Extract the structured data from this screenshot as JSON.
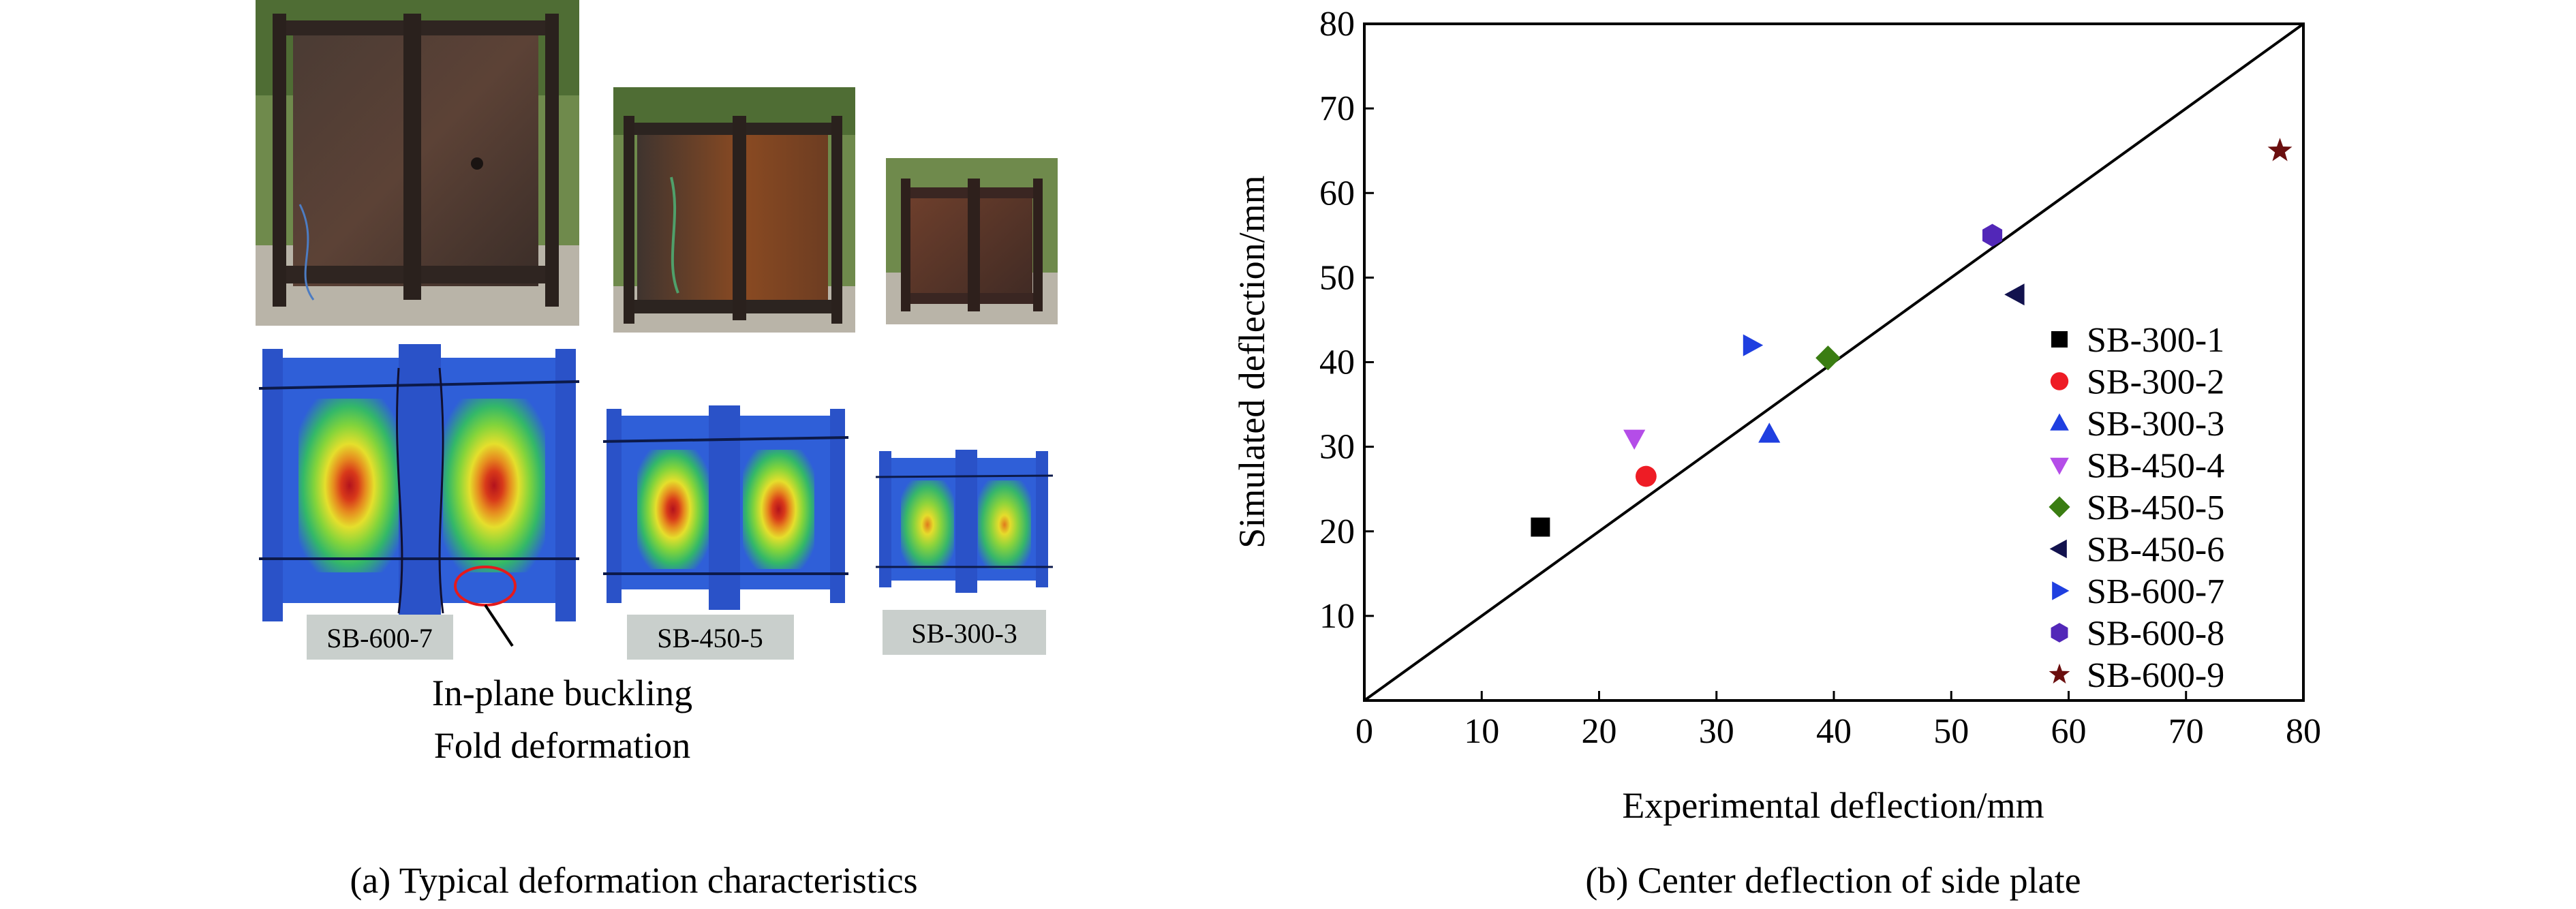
{
  "panel_a": {
    "specimen_labels": [
      "SB-600-7",
      "SB-450-5",
      "SB-300-3"
    ],
    "annotation_line1": "In-plane buckling",
    "annotation_line2": "Fold deformation",
    "caption": "(a) Typical deformation characteristics"
  },
  "panel_b": {
    "caption": "(b) Center deflection of side plate"
  },
  "colors": {
    "fe_blue": "#2a4fd6",
    "fe_green": "#7ed23a",
    "fe_yellow": "#e8e12c",
    "fe_orange": "#e27a1c",
    "fe_red": "#c1121f",
    "label_bg": "#c9cfcc"
  },
  "chart_data": {
    "type": "scatter",
    "xlabel": "Experimental deflection/mm",
    "ylabel": "Simulated deflection/mm",
    "xlim": [
      0,
      80
    ],
    "ylim": [
      0,
      80
    ],
    "x_ticks": [
      0,
      10,
      20,
      30,
      40,
      50,
      60,
      70,
      80
    ],
    "y_ticks": [
      10,
      20,
      30,
      40,
      50,
      60,
      70,
      80
    ],
    "x_tick_labels": [
      "0",
      "10",
      "20",
      "30",
      "40",
      "50",
      "60",
      "70",
      "80"
    ],
    "y_tick_labels": [
      "10",
      "20",
      "30",
      "40",
      "50",
      "60",
      "70",
      "80"
    ],
    "grid": false,
    "reference_line": "y = x",
    "legend_position": "right",
    "series": [
      {
        "name": "SB-300-1",
        "marker": "square",
        "color": "#000000",
        "x": 15.0,
        "y": 20.5
      },
      {
        "name": "SB-300-2",
        "marker": "circle",
        "color": "#ee1c25",
        "x": 24.0,
        "y": 26.5
      },
      {
        "name": "SB-300-3",
        "marker": "triangle-up",
        "color": "#1f3fe0",
        "x": 34.5,
        "y": 31.5
      },
      {
        "name": "SB-450-4",
        "marker": "triangle-down",
        "color": "#b44de8",
        "x": 23.0,
        "y": 31.0
      },
      {
        "name": "SB-450-5",
        "marker": "diamond",
        "color": "#3a7d12",
        "x": 39.5,
        "y": 40.5
      },
      {
        "name": "SB-450-6",
        "marker": "triangle-left",
        "color": "#12124e",
        "x": 55.5,
        "y": 48.0
      },
      {
        "name": "SB-600-7",
        "marker": "triangle-right",
        "color": "#1f3fe0",
        "x": 33.0,
        "y": 42.0
      },
      {
        "name": "SB-600-8",
        "marker": "hexagon",
        "color": "#5227b8",
        "x": 53.5,
        "y": 55.0
      },
      {
        "name": "SB-600-9",
        "marker": "star",
        "color": "#6b0f0f",
        "x": 78.0,
        "y": 65.0
      }
    ]
  }
}
